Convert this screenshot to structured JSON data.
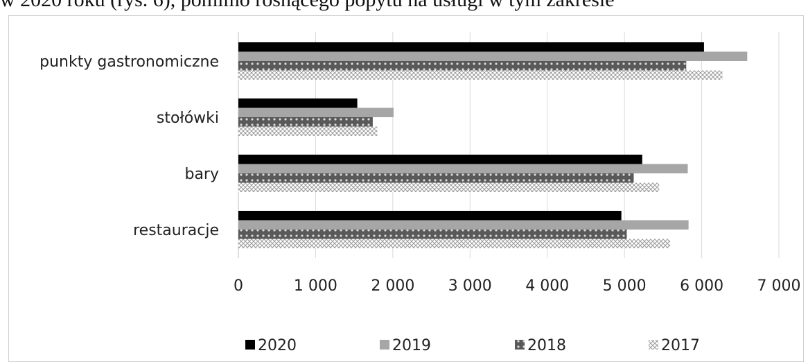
{
  "caption_text": "w 2020 roku (rys. 6), pomimo rosnącego popytu na usługi w tym zakresie",
  "chart_data": {
    "type": "bar",
    "orientation": "horizontal",
    "categories": [
      "punkty gastronomiczne",
      "stołówki",
      "bary",
      "restauracje"
    ],
    "series": [
      {
        "name": "2020",
        "values": [
          6030,
          1540,
          5230,
          4960
        ],
        "color": "#000000",
        "pattern": "solid"
      },
      {
        "name": "2019",
        "values": [
          6590,
          2010,
          5820,
          5830
        ],
        "color": "#a6a6a6",
        "pattern": "solid"
      },
      {
        "name": "2018",
        "values": [
          5800,
          1740,
          5120,
          5030
        ],
        "color": "#595959",
        "pattern": "dots"
      },
      {
        "name": "2017",
        "values": [
          6270,
          1800,
          5450,
          5590
        ],
        "color": "#c8c8c8",
        "pattern": "crosshatch"
      }
    ],
    "xlim": [
      0,
      7000
    ],
    "xticks": [
      0,
      1000,
      2000,
      3000,
      4000,
      5000,
      6000,
      7000
    ],
    "xtick_labels": [
      "0",
      "1 000",
      "2 000",
      "3 000",
      "4 000",
      "5 000",
      "6 000",
      "7 000"
    ],
    "grid": true,
    "legend_position": "bottom",
    "title": "",
    "xlabel": "",
    "ylabel": ""
  }
}
